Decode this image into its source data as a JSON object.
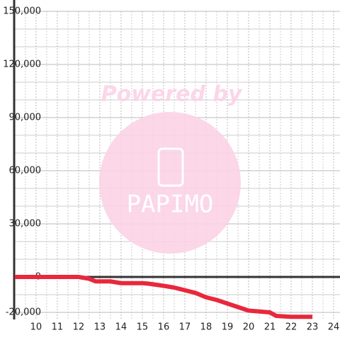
{
  "chart_data": {
    "type": "line",
    "watermark_text": [
      "Powered by",
      "PAPIMO"
    ],
    "x": [
      9,
      12,
      12.5,
      12.8,
      13.5,
      14,
      15,
      15.3,
      16,
      16.5,
      17,
      17.5,
      18,
      18.5,
      19,
      19.5,
      20,
      20.5,
      21,
      21.3,
      22,
      23
    ],
    "series": [
      {
        "color": "#e8283c",
        "values": [
          0,
          0,
          -1000,
          -2500,
          -2500,
          -3500,
          -3500,
          -3800,
          -5000,
          -6000,
          -7500,
          -9000,
          -11500,
          -13000,
          -15000,
          -17000,
          -19000,
          -19500,
          -20000,
          -22000,
          -22500,
          -22500
        ]
      }
    ],
    "xlim": [
      8.97,
      24.3
    ],
    "xticks": [
      10,
      11,
      12,
      13,
      14,
      15,
      16,
      17,
      18,
      19,
      20,
      21,
      22,
      23,
      24
    ],
    "xminor": [
      9.5,
      10.5,
      11.5,
      12.5,
      13.5,
      14.5,
      15.5,
      16.5,
      17.5,
      18.5,
      19.5,
      20.5,
      21.5,
      22.5,
      23.5
    ],
    "ylim": [
      -24000,
      150000
    ],
    "yticks": [
      {
        "value": -20000,
        "label": "-20,000"
      },
      0,
      {
        "value": 30000,
        "label": "30,000"
      },
      {
        "value": 60000,
        "label": "60,000"
      },
      {
        "value": 90000,
        "label": "90,000"
      },
      {
        "value": 120000,
        "label": "120,000"
      },
      {
        "value": 150000,
        "label": "150,000"
      }
    ],
    "yminor": [
      -10000,
      10000,
      20000,
      40000,
      50000,
      70000,
      80000,
      100000,
      110000,
      130000,
      140000
    ],
    "grid": true
  }
}
